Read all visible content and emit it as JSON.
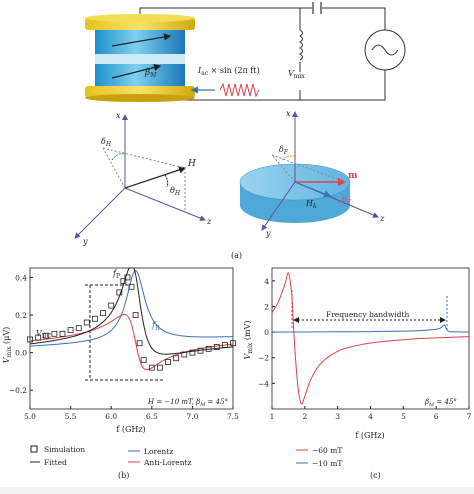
{
  "figure": {
    "panel_a": {
      "label": "(a)",
      "current_label": "I",
      "current_sub": "ac",
      "current_rest": " × sin (2π ft)",
      "vmix_label": "V",
      "vmix_sub": "mix",
      "beta_label": "β",
      "beta_sub": "M",
      "left_axes": {
        "x": "x",
        "y": "y",
        "z": "z",
        "H": "H",
        "delta": "δ",
        "delta_sub": "H",
        "theta": "θ",
        "theta_sub": "H"
      },
      "right_axes": {
        "x": "x",
        "y": "y",
        "z": "z",
        "m": "m",
        "Hk": "H",
        "Hk_sub": "k",
        "delta": "δ",
        "delta_sub": "F",
        "theta": "θ",
        "theta_sub": "F"
      }
    },
    "panel_b": {
      "label": "(b)",
      "ylabel": "V",
      "ylabel_sub": "mix",
      "ylabel_unit": " (μV)",
      "xlabel": "f (GHz)",
      "annot_vdc": "V",
      "annot_vdc_sub": "DC",
      "annot_fp": "f",
      "annot_fp_sub": "P",
      "annot_fr": "f",
      "annot_fr_sub": "R",
      "condition": "H = −10 mT, β",
      "condition_sub": "M",
      "condition_rest": " = 45°",
      "legend": [
        "Simulation",
        "Fitted",
        "Lorentz",
        "Anti-Lorentz"
      ]
    },
    "panel_c": {
      "label": "(c)",
      "ylabel": "V",
      "ylabel_sub": "mix",
      "ylabel_unit": " (mV)",
      "xlabel": "f (GHz)",
      "annot_bandwidth": "Frequency bandwidth",
      "annot_beta": "β",
      "annot_beta_sub": "M",
      "annot_beta_rest": " = 45°",
      "legend": [
        "−60 mT",
        "−10 mT"
      ]
    }
  },
  "chart_data": [
    {
      "type": "line",
      "panel": "(b)",
      "xlabel": "f (GHz)",
      "ylabel": "Vmix (μV)",
      "xlim": [
        5.0,
        7.5
      ],
      "ylim": [
        -0.3,
        0.45
      ],
      "xticks": [
        "5.0",
        "5.5",
        "6.0",
        "6.5",
        "7.0",
        "7.5"
      ],
      "yticks": [
        "−0.2",
        "0.0",
        "0.2",
        "0.4"
      ],
      "colors": {
        "Simulation": "#222222",
        "Fitted": "#222222",
        "Lorentz": "#3a6fb7",
        "Anti-Lorentz": "#e0424a"
      },
      "simulation_points": {
        "x": [
          5.0,
          5.1,
          5.2,
          5.3,
          5.4,
          5.5,
          5.6,
          5.7,
          5.8,
          5.9,
          6.0,
          6.1,
          6.15,
          6.2,
          6.25,
          6.3,
          6.35,
          6.4,
          6.5,
          6.6,
          6.7,
          6.8,
          6.9,
          7.0,
          7.1,
          7.2,
          7.3,
          7.4,
          7.5
        ],
        "y": [
          0.07,
          0.08,
          0.09,
          0.1,
          0.1,
          0.12,
          0.13,
          0.16,
          0.18,
          0.21,
          0.25,
          0.32,
          0.38,
          0.4,
          0.35,
          0.2,
          0.05,
          -0.04,
          -0.08,
          -0.08,
          -0.05,
          -0.03,
          -0.01,
          0.0,
          0.01,
          0.02,
          0.03,
          0.04,
          0.05
        ]
      }
    },
    {
      "type": "line",
      "panel": "(c)",
      "xlabel": "f (GHz)",
      "ylabel": "Vmix (mV)",
      "xlim": [
        1,
        7
      ],
      "ylim": [
        -6,
        5
      ],
      "xticks": [
        "1",
        "2",
        "3",
        "4",
        "5",
        "6",
        "7"
      ],
      "yticks": [
        "−4",
        "−2",
        "0",
        "2",
        "4"
      ],
      "series": [
        {
          "name": "−60 mT",
          "color": "#e0424a",
          "x": [
            1.0,
            1.2,
            1.4,
            1.5,
            1.6,
            1.65,
            1.7,
            1.8,
            1.9,
            2.0,
            2.2,
            2.5,
            3.0,
            3.5,
            4.0,
            4.5,
            5.0,
            5.5,
            6.0,
            6.5,
            7.0
          ],
          "y": [
            1.5,
            2.4,
            3.8,
            4.6,
            3.0,
            0.8,
            -1.5,
            -4.5,
            -5.6,
            -5.0,
            -3.6,
            -2.4,
            -1.5,
            -1.1,
            -0.85,
            -0.7,
            -0.6,
            -0.5,
            -0.45,
            -0.4,
            -0.35
          ]
        },
        {
          "name": "−10 mT",
          "color": "#3a6fb7",
          "x": [
            1.0,
            2.0,
            3.0,
            4.0,
            5.0,
            5.5,
            6.0,
            6.15,
            6.25,
            6.35,
            6.5,
            7.0
          ],
          "y": [
            0.0,
            0.01,
            0.02,
            0.04,
            0.08,
            0.12,
            0.22,
            0.35,
            0.55,
            0.1,
            0.02,
            0.01
          ]
        }
      ]
    }
  ]
}
